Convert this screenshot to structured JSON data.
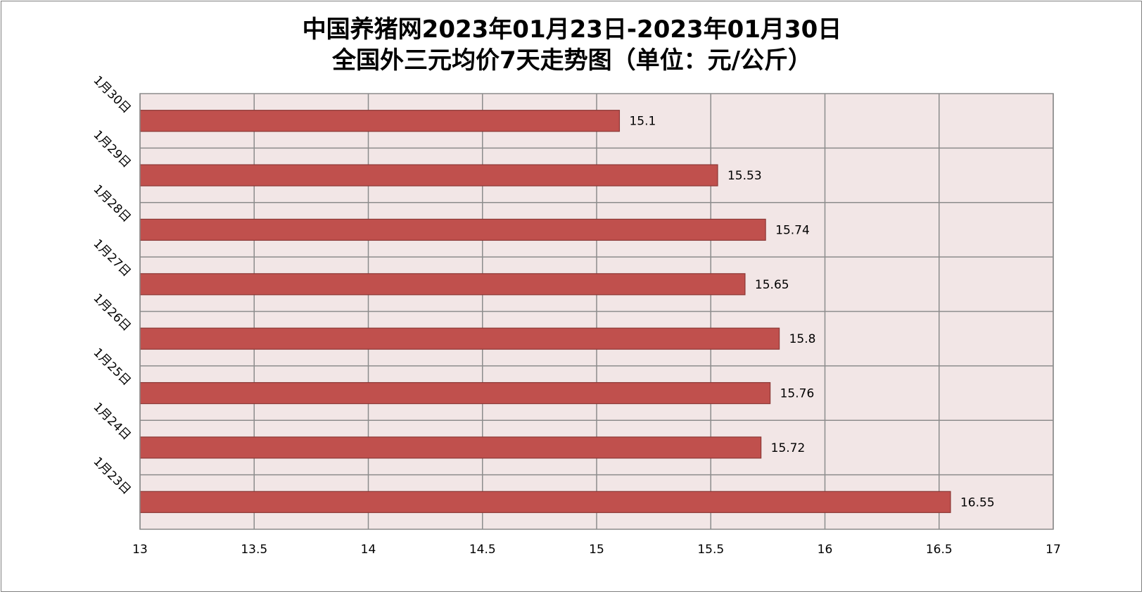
{
  "chart_data": {
    "type": "bar",
    "orientation": "horizontal",
    "title_lines": [
      "中国养猪网2023年01月23日-2023年01月30日",
      "全国外三元均价7天走势图（单位：元/公斤）"
    ],
    "categories": [
      "1月23日",
      "1月24日",
      "1月25日",
      "1月26日",
      "1月27日",
      "1月28日",
      "1月29日",
      "1月30日"
    ],
    "values": [
      16.55,
      15.72,
      15.76,
      15.8,
      15.65,
      15.74,
      15.53,
      15.1
    ],
    "data_labels": [
      "16.55",
      "15.72",
      "15.76",
      "15.8",
      "15.65",
      "15.74",
      "15.53",
      "15.1"
    ],
    "xlim": [
      13,
      17
    ],
    "x_ticks": [
      13,
      13.5,
      14,
      14.5,
      15,
      15.5,
      16,
      16.5,
      17
    ],
    "x_tick_labels": [
      "13",
      "13.5",
      "14",
      "14.5",
      "15",
      "15.5",
      "16",
      "16.5",
      "17"
    ],
    "grid": true,
    "legend": "none",
    "colors": {
      "bar_fill": "#c0504d",
      "bar_stroke": "#8c3836",
      "plot_bg": "#f2e6e6",
      "grid": "#8c8c8c"
    }
  }
}
